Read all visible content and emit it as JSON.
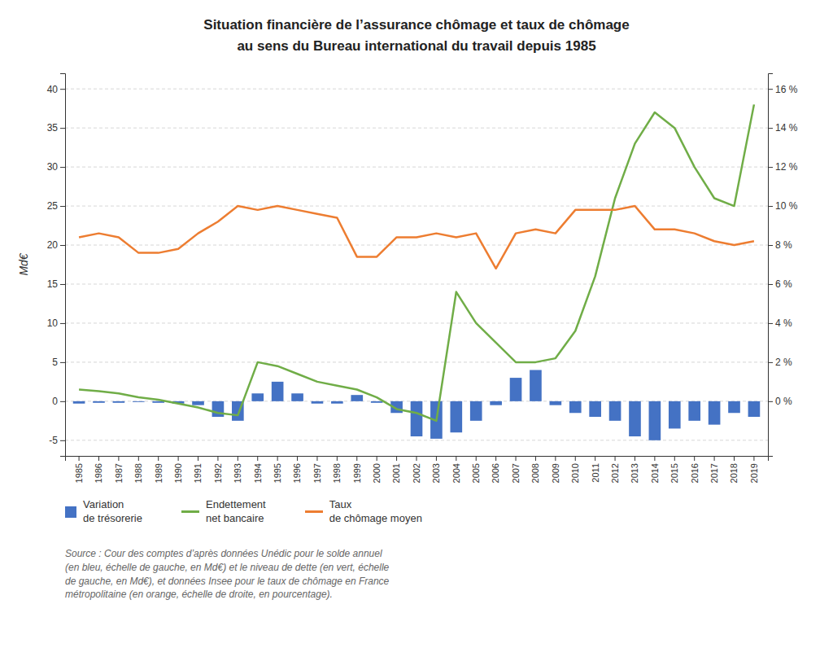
{
  "chart_data": {
    "type": "bar",
    "title": "Situation financière de l’assurance chômage et taux de chômage\nau sens du Bureau international du travail depuis 1985",
    "ylabel": "Md€",
    "source": "Source : Cour des comptes d’après données Unédic pour le solde annuel\n(en bleu, échelle de gauche, en Md€) et le niveau de dette (en vert, échelle\nde gauche, en Md€), et données Insee pour le taux de chômage en France\nmétropolitaine (en orange, échelle de droite, en pourcentage).",
    "categories": [
      "1985",
      "1986",
      "1987",
      "1988",
      "1989",
      "1990",
      "1991",
      "1992",
      "1993",
      "1994",
      "1995",
      "1996",
      "1997",
      "1998",
      "1999",
      "2000",
      "2001",
      "2002",
      "2003",
      "2004",
      "2005",
      "2006",
      "2007",
      "2008",
      "2009",
      "2010",
      "2011",
      "2012",
      "2013",
      "2014",
      "2015",
      "2016",
      "2017",
      "2018",
      "2019"
    ],
    "series": [
      {
        "name": "Variation\nde trésorerie",
        "type": "bar",
        "color": "#4472C4",
        "values": [
          -0.3,
          -0.2,
          -0.2,
          -0.1,
          -0.2,
          -0.3,
          -0.5,
          -2.0,
          -2.5,
          1.0,
          2.5,
          1.0,
          -0.3,
          -0.3,
          0.8,
          -0.2,
          -1.5,
          -4.5,
          -4.8,
          -4.0,
          -2.5,
          -0.5,
          3.0,
          4.0,
          -0.5,
          -1.5,
          -2.0,
          -2.5,
          -4.5,
          -5.0,
          -3.5,
          -2.5,
          -3.0,
          -1.5,
          -2.0
        ]
      },
      {
        "name": "Endettement\nnet bancaire",
        "type": "line",
        "color": "#70AD47",
        "values": [
          1.5,
          1.3,
          1.0,
          0.5,
          0.2,
          -0.3,
          -0.8,
          -1.5,
          -1.8,
          5.0,
          4.5,
          3.5,
          2.5,
          2.0,
          1.5,
          0.5,
          -1.0,
          -1.5,
          -2.5,
          14.0,
          10.0,
          7.5,
          5.0,
          5.0,
          5.5,
          9.0,
          16.0,
          26.0,
          33.0,
          37.0,
          35.0,
          30.0,
          26.0,
          25.0,
          38.0
        ]
      },
      {
        "name": "Taux\nde chômage moyen",
        "type": "line",
        "color": "#ED7D31",
        "axis": "y2",
        "values": [
          8.4,
          8.6,
          8.4,
          7.6,
          7.6,
          7.8,
          8.6,
          9.2,
          10.0,
          9.8,
          10.0,
          9.8,
          9.6,
          9.4,
          7.4,
          7.4,
          8.4,
          8.4,
          8.6,
          8.4,
          8.6,
          6.8,
          8.6,
          8.8,
          8.6,
          9.8,
          9.8,
          9.8,
          10.0,
          8.8,
          8.8,
          8.6,
          8.2,
          8.0,
          8.2
        ]
      }
    ],
    "ylim": [
      -7,
      42
    ],
    "yticks": [
      -5,
      0,
      5,
      10,
      15,
      20,
      25,
      30,
      35,
      40
    ],
    "y2lim": [
      -2.8,
      16.8
    ],
    "y2ticks": [
      {
        "value": 0,
        "label": "0 %"
      },
      {
        "value": 2,
        "label": "2 %"
      },
      {
        "value": 4,
        "label": "4 %"
      },
      {
        "value": 6,
        "label": "6 %"
      },
      {
        "value": 8,
        "label": "8 %"
      },
      {
        "value": 10,
        "label": "10 %"
      },
      {
        "value": 12,
        "label": "12 %"
      },
      {
        "value": 14,
        "label": "14 %"
      },
      {
        "value": 16,
        "label": "16 %"
      }
    ],
    "grid": true,
    "legend": "bottom"
  }
}
